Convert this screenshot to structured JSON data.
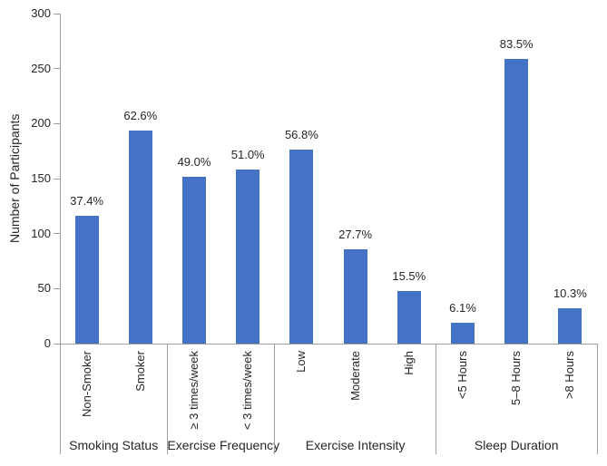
{
  "chart_data": {
    "type": "bar",
    "title": "",
    "xlabel": "",
    "ylabel": "Number of Participants",
    "ylim": [
      0,
      300
    ],
    "yticks": [
      0,
      50,
      100,
      150,
      200,
      250,
      300
    ],
    "grid": false,
    "legend": false,
    "bar_color": "#4472C4",
    "groups": [
      {
        "label": "Smoking Status",
        "categories": [
          "Non-Smoker",
          "Smoker"
        ],
        "values": [
          116,
          194
        ],
        "bar_labels": [
          "37.4%",
          "62.6%"
        ]
      },
      {
        "label": "Exercise Frequency",
        "categories": [
          "≥ 3 times/week",
          "< 3 times/week"
        ],
        "values": [
          152,
          158
        ],
        "bar_labels": [
          "49.0%",
          "51.0%"
        ]
      },
      {
        "label": "Exercise Intensity",
        "categories": [
          "Low",
          "Moderate",
          "High"
        ],
        "values": [
          176,
          86,
          48
        ],
        "bar_labels": [
          "56.8%",
          "27.7%",
          "15.5%"
        ]
      },
      {
        "label": "Sleep Duration",
        "categories": [
          "<5 Hours",
          "5–8 Hours",
          ">8 Hours"
        ],
        "values": [
          19,
          259,
          32
        ],
        "bar_labels": [
          "6.1%",
          "83.5%",
          "10.3%"
        ]
      }
    ]
  }
}
